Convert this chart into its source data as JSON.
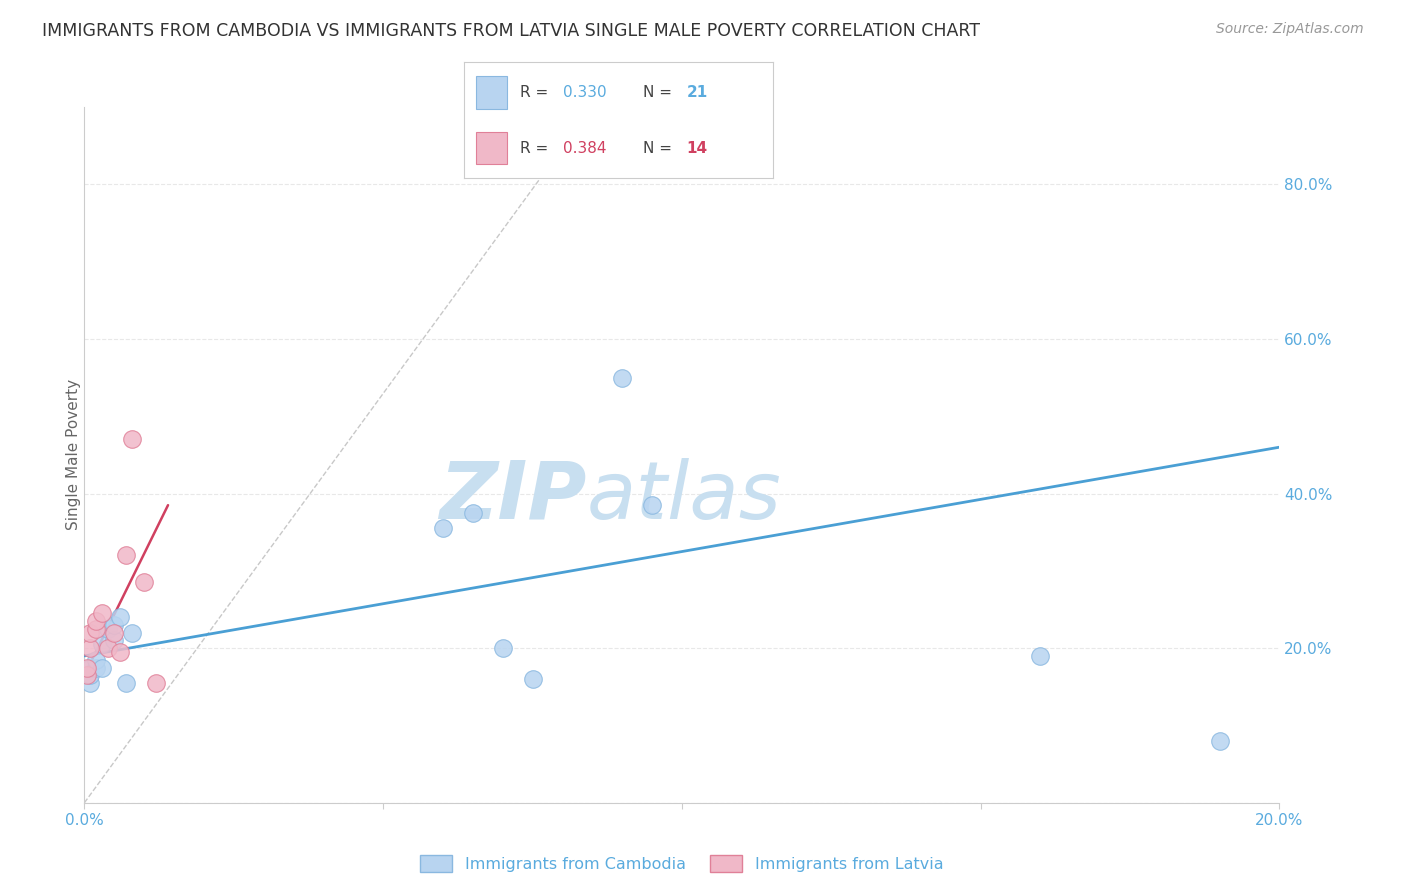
{
  "title": "IMMIGRANTS FROM CAMBODIA VS IMMIGRANTS FROM LATVIA SINGLE MALE POVERTY CORRELATION CHART",
  "source": "Source: ZipAtlas.com",
  "ylabel": "Single Male Poverty",
  "y_ticks": [
    0.0,
    0.2,
    0.4,
    0.6,
    0.8
  ],
  "y_tick_labels": [
    "",
    "20.0%",
    "40.0%",
    "60.0%",
    "80.0%"
  ],
  "x_ticks": [
    0.0,
    0.05,
    0.1,
    0.15,
    0.2
  ],
  "x_tick_labels": [
    "0.0%",
    "",
    "",
    "",
    "20.0%"
  ],
  "x_lim": [
    0.0,
    0.2
  ],
  "y_lim": [
    0.0,
    0.9
  ],
  "legend1_R": "0.330",
  "legend1_N": "21",
  "legend2_R": "0.384",
  "legend2_N": "14",
  "blue_scatter_x": [
    0.001,
    0.001,
    0.001,
    0.002,
    0.002,
    0.003,
    0.003,
    0.004,
    0.005,
    0.005,
    0.006,
    0.007,
    0.008,
    0.06,
    0.065,
    0.07,
    0.075,
    0.09,
    0.095,
    0.16,
    0.19
  ],
  "blue_scatter_y": [
    0.155,
    0.165,
    0.175,
    0.175,
    0.185,
    0.175,
    0.205,
    0.225,
    0.21,
    0.23,
    0.24,
    0.155,
    0.22,
    0.355,
    0.375,
    0.2,
    0.16,
    0.55,
    0.385,
    0.19,
    0.08
  ],
  "pink_scatter_x": [
    0.0005,
    0.0005,
    0.001,
    0.001,
    0.002,
    0.002,
    0.003,
    0.004,
    0.005,
    0.006,
    0.007,
    0.008,
    0.01,
    0.012
  ],
  "pink_scatter_y": [
    0.165,
    0.175,
    0.2,
    0.22,
    0.225,
    0.235,
    0.245,
    0.2,
    0.22,
    0.195,
    0.32,
    0.47,
    0.285,
    0.155
  ],
  "blue_trend_x": [
    0.0,
    0.2
  ],
  "blue_trend_y": [
    0.19,
    0.46
  ],
  "pink_trend_x": [
    0.0,
    0.014
  ],
  "pink_trend_y": [
    0.165,
    0.385
  ],
  "diag_line_x": [
    0.0,
    0.085
  ],
  "diag_line_y": [
    0.0,
    0.9
  ],
  "watermark_zip": "ZIP",
  "watermark_atlas": "atlas",
  "watermark_color_zip": "#c8dff0",
  "watermark_color_atlas": "#c8dff0",
  "bg_color": "#ffffff",
  "grid_color": "#e8e8e8",
  "axis_color": "#cccccc",
  "title_color": "#333333",
  "tick_color": "#5aabde",
  "scatter_blue_face": "#b8d4f0",
  "scatter_blue_edge": "#8ab8e0",
  "scatter_pink_face": "#f0b8c8",
  "scatter_pink_edge": "#e08098",
  "trend_blue_color": "#4a9fd4",
  "trend_pink_color": "#d04060",
  "diag_color": "#c8c8c8",
  "legend_label_1": "Immigrants from Cambodia",
  "legend_label_2": "Immigrants from Latvia"
}
